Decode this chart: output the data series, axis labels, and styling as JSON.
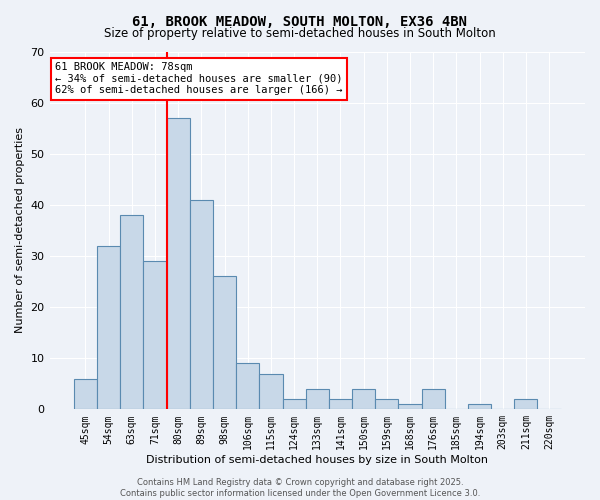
{
  "title": "61, BROOK MEADOW, SOUTH MOLTON, EX36 4BN",
  "subtitle": "Size of property relative to semi-detached houses in South Molton",
  "xlabel": "Distribution of semi-detached houses by size in South Molton",
  "ylabel": "Number of semi-detached properties",
  "bar_color": "#c8d8e8",
  "bar_edge_color": "#5a8ab0",
  "background_color": "#eef2f8",
  "categories": [
    "45sqm",
    "54sqm",
    "63sqm",
    "71sqm",
    "80sqm",
    "89sqm",
    "98sqm",
    "106sqm",
    "115sqm",
    "124sqm",
    "133sqm",
    "141sqm",
    "150sqm",
    "159sqm",
    "168sqm",
    "176sqm",
    "185sqm",
    "194sqm",
    "203sqm",
    "211sqm",
    "220sqm"
  ],
  "values": [
    6,
    32,
    38,
    29,
    57,
    41,
    26,
    9,
    7,
    2,
    4,
    2,
    4,
    2,
    1,
    4,
    0,
    1,
    0,
    2,
    0
  ],
  "red_line_index": 4,
  "ylim": [
    0,
    70
  ],
  "yticks": [
    0,
    10,
    20,
    30,
    40,
    50,
    60,
    70
  ],
  "annotation_text": "61 BROOK MEADOW: 78sqm\n← 34% of semi-detached houses are smaller (90)\n62% of semi-detached houses are larger (166) →",
  "footer": "Contains HM Land Registry data © Crown copyright and database right 2025.\nContains public sector information licensed under the Open Government Licence 3.0.",
  "property_sqm": 78,
  "pct_smaller": 34,
  "n_smaller": 90,
  "pct_larger": 62,
  "n_larger": 166
}
